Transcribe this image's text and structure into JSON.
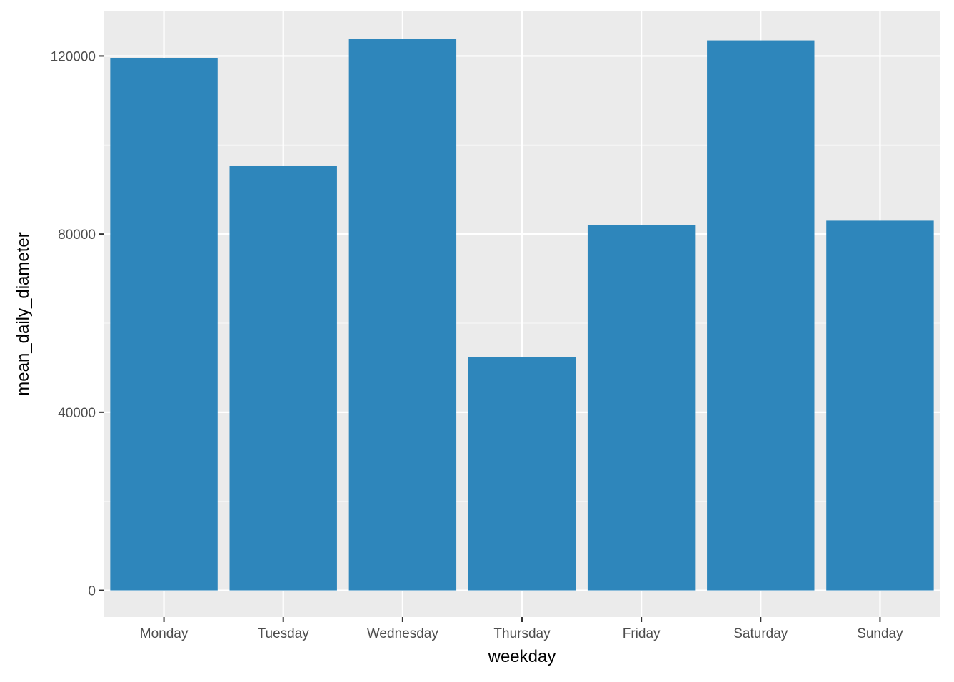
{
  "chart_data": {
    "type": "bar",
    "categories": [
      "Monday",
      "Tuesday",
      "Wednesday",
      "Thursday",
      "Friday",
      "Saturday",
      "Sunday"
    ],
    "values": [
      119500,
      95400,
      123800,
      52400,
      82000,
      123500,
      83000
    ],
    "xlabel": "weekday",
    "ylabel": "mean_daily_diameter",
    "ylim": [
      -6000,
      130000
    ],
    "y_ticks": [
      0,
      40000,
      80000,
      120000
    ],
    "y_tick_labels": [
      "0",
      "40000",
      "80000",
      "120000"
    ],
    "grid": true,
    "colors": {
      "bar": "#2e86bb",
      "panel_background": "#ebebeb",
      "grid_major": "#ffffff",
      "grid_minor": "#f5f5f5"
    }
  }
}
